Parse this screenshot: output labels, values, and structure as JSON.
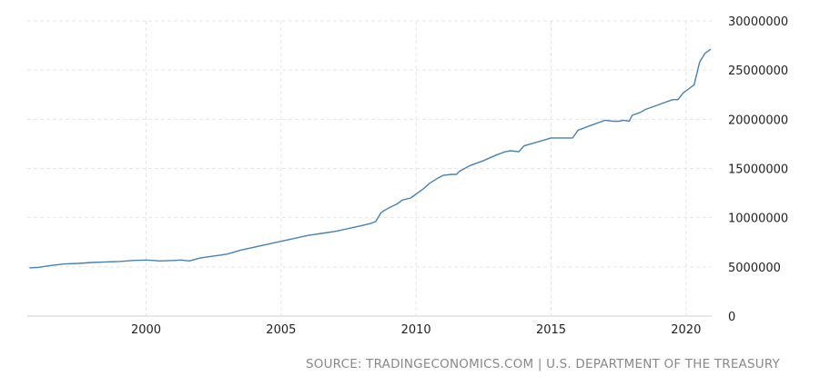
{
  "source_text": "SOURCE: TRADINGECONOMICS.COM | U.S. DEPARTMENT OF THE TREASURY",
  "chart_data": {
    "type": "line",
    "title": "",
    "xlabel": "",
    "ylabel": "",
    "xlim": [
      1995.6,
      2020.95
    ],
    "ylim": [
      0,
      30000000
    ],
    "x_ticks": [
      2000,
      2005,
      2010,
      2015,
      2020
    ],
    "x_tick_labels": [
      "2000",
      "2005",
      "2010",
      "2015",
      "2020"
    ],
    "y_ticks": [
      0,
      5000000,
      10000000,
      15000000,
      20000000,
      25000000,
      30000000
    ],
    "y_tick_labels": [
      "0",
      "5000000",
      "10000000",
      "15000000",
      "20000000",
      "25000000",
      "30000000"
    ],
    "y_axis_position": "right",
    "grid": true,
    "line_color": "#4682b4",
    "series": [
      {
        "x": [
          1995.7,
          1996.0,
          1996.5,
          1997.0,
          1997.5,
          1998.0,
          1998.5,
          1999.0,
          1999.5,
          2000.0,
          2000.3,
          2000.5,
          2001.0,
          2001.3,
          2001.6,
          2002.0,
          2002.5,
          2003.0,
          2003.5,
          2004.0,
          2004.5,
          2005.0,
          2005.5,
          2006.0,
          2006.5,
          2007.0,
          2007.5,
          2008.0,
          2008.3,
          2008.5,
          2008.7,
          2008.8,
          2009.0,
          2009.3,
          2009.5,
          2009.8,
          2010.0,
          2010.3,
          2010.5,
          2010.8,
          2011.0,
          2011.3,
          2011.5,
          2011.6,
          2012.0,
          2012.5,
          2013.0,
          2013.3,
          2013.5,
          2013.8,
          2014.0,
          2014.5,
          2015.0,
          2015.4,
          2015.8,
          2016.0,
          2016.5,
          2017.0,
          2017.3,
          2017.5,
          2017.7,
          2017.9,
          2018.0,
          2018.3,
          2018.5,
          2019.0,
          2019.5,
          2019.7,
          2019.9,
          2020.1,
          2020.2,
          2020.3,
          2020.5,
          2020.7,
          2020.9
        ],
        "values": [
          4900000,
          4950000,
          5150000,
          5300000,
          5350000,
          5450000,
          5500000,
          5550000,
          5650000,
          5700000,
          5650000,
          5600000,
          5650000,
          5700000,
          5600000,
          5900000,
          6100000,
          6300000,
          6700000,
          7000000,
          7300000,
          7600000,
          7900000,
          8200000,
          8400000,
          8600000,
          8900000,
          9200000,
          9400000,
          9600000,
          10500000,
          10700000,
          11000000,
          11400000,
          11800000,
          12000000,
          12400000,
          13000000,
          13500000,
          14000000,
          14300000,
          14400000,
          14400000,
          14700000,
          15300000,
          15800000,
          16400000,
          16700000,
          16800000,
          16700000,
          17300000,
          17700000,
          18100000,
          18100000,
          18100000,
          18900000,
          19400000,
          19900000,
          19800000,
          19800000,
          19900000,
          19800000,
          20400000,
          20700000,
          21000000,
          21500000,
          22000000,
          22000000,
          22700000,
          23100000,
          23300000,
          23500000,
          25800000,
          26700000,
          27100000
        ]
      }
    ]
  }
}
